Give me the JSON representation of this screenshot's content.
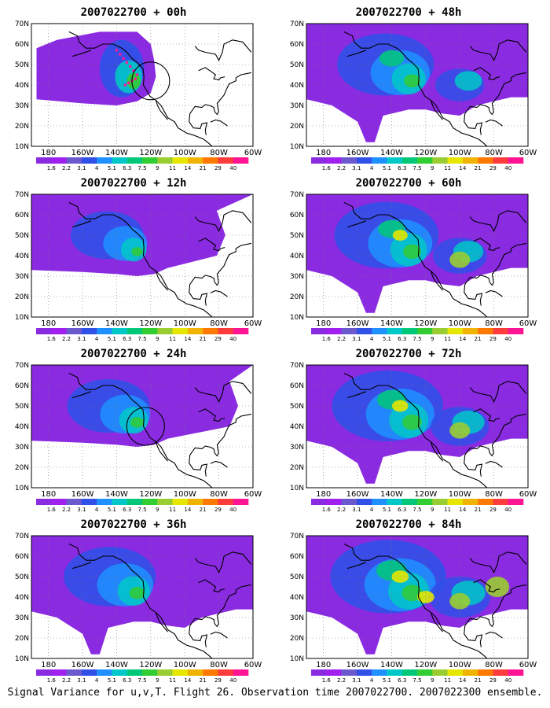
{
  "panels": [
    {
      "title": "2007022700 + 00h",
      "intensity": 0.35,
      "markers": true,
      "circle": {
        "lon": -120,
        "lat": 42
      }
    },
    {
      "title": "2007022700 + 12h",
      "intensity": 0.55,
      "markers": false,
      "circle": null
    },
    {
      "title": "2007022700 + 24h",
      "intensity": 0.65,
      "markers": false,
      "circle": {
        "lon": -123,
        "lat": 40
      }
    },
    {
      "title": "2007022700 + 36h",
      "intensity": 0.75,
      "markers": false,
      "circle": null
    },
    {
      "title": "2007022700 + 48h",
      "intensity": 0.8,
      "markers": false,
      "circle": null
    },
    {
      "title": "2007022700 + 60h",
      "intensity": 0.88,
      "markers": false,
      "circle": null
    },
    {
      "title": "2007022700 + 72h",
      "intensity": 0.95,
      "markers": false,
      "circle": null
    },
    {
      "title": "2007022700 + 84h",
      "intensity": 1.0,
      "markers": false,
      "circle": null
    }
  ],
  "axes": {
    "lat_labels": [
      "10N",
      "20N",
      "30N",
      "40N",
      "50N",
      "60N",
      "70N"
    ],
    "lat_values": [
      10,
      20,
      30,
      40,
      50,
      60,
      70
    ],
    "lon_labels": [
      "180",
      "160W",
      "140W",
      "120W",
      "100W",
      "80W",
      "60W"
    ],
    "lon_values": [
      -180,
      -160,
      -140,
      -120,
      -100,
      -80,
      -60
    ],
    "lon_range": [
      -190,
      -60
    ],
    "lat_range": [
      10,
      70
    ]
  },
  "colorbar": {
    "labels": [
      "1.6",
      "2.2",
      "3.1",
      "4",
      "5.1",
      "6.3",
      "7.5",
      "9",
      "11",
      "14",
      "21",
      "29",
      "40"
    ],
    "colors": [
      "#8a2be2",
      "#a020f0",
      "#6a5acd",
      "#3050e8",
      "#1e90ff",
      "#00c8c8",
      "#00c878",
      "#32cd32",
      "#9acd32",
      "#e6e600",
      "#f0b400",
      "#ff7800",
      "#ff3c3c",
      "#ff1493"
    ]
  },
  "footer": "Signal Variance for u,v,T. Flight 26. Observation time 2007022700. 2007022300 ensemble."
}
